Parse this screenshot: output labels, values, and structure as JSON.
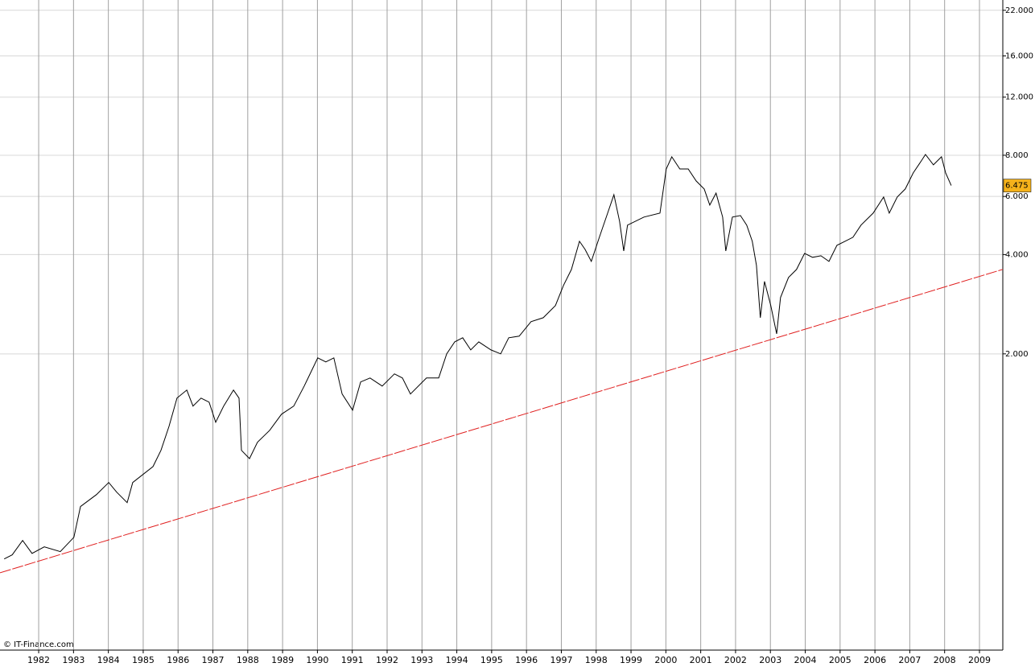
{
  "chart_data": {
    "type": "line",
    "source": "© IT-Finance.com",
    "log_y": true,
    "grid": true,
    "xlim": [
      1980.89,
      2009.67
    ],
    "xticks": [
      1982,
      1983,
      1984,
      1985,
      1986,
      1987,
      1988,
      1989,
      1990,
      1991,
      1992,
      1993,
      1994,
      1995,
      1996,
      1997,
      1998,
      1999,
      2000,
      2001,
      2002,
      2003,
      2004,
      2005,
      2006,
      2007,
      2008,
      2009
    ],
    "ylim": [
      253,
      23640
    ],
    "yticks": [
      {
        "value": 2000,
        "label": "2.000"
      },
      {
        "value": 4000,
        "label": "4.000"
      },
      {
        "value": 6000,
        "label": "6.000"
      },
      {
        "value": 8000,
        "label": "8.000"
      },
      {
        "value": 12000,
        "label": "12.000"
      },
      {
        "value": 16000,
        "label": "16.000"
      },
      {
        "value": 22000,
        "label": "22.000"
      }
    ],
    "current_value": {
      "value": 6475,
      "label": "6.475",
      "color": "#f5b21b"
    },
    "series": [
      {
        "color": "#000000",
        "x": [
          1981.01,
          1981.24,
          1981.54,
          1981.81,
          1982.16,
          1982.62,
          1983.01,
          1983.2,
          1983.66,
          1984.01,
          1984.24,
          1984.54,
          1984.7,
          1985.28,
          1985.51,
          1985.74,
          1985.97,
          1986.25,
          1986.43,
          1986.66,
          1986.89,
          1987.08,
          1987.31,
          1987.59,
          1987.75,
          1987.82,
          1988.05,
          1988.28,
          1988.63,
          1988.97,
          1989.32,
          1989.62,
          1990.01,
          1990.24,
          1990.47,
          1990.71,
          1991.01,
          1991.24,
          1991.51,
          1991.86,
          1992.21,
          1992.44,
          1992.67,
          1993.13,
          1993.48,
          1993.71,
          1993.94,
          1994.17,
          1994.4,
          1994.63,
          1994.98,
          1995.26,
          1995.49,
          1995.79,
          1996.13,
          1996.48,
          1996.83,
          1997.06,
          1997.29,
          1997.52,
          1997.68,
          1997.86,
          1998.09,
          1998.33,
          1998.51,
          1998.67,
          1998.79,
          1998.9,
          1999.37,
          1999.83,
          2000.01,
          2000.17,
          2000.4,
          2000.64,
          2000.87,
          2001.1,
          2001.26,
          2001.44,
          2001.63,
          2001.72,
          2001.91,
          2002.14,
          2002.32,
          2002.48,
          2002.6,
          2002.71,
          2002.83,
          2003.01,
          2003.18,
          2003.29,
          2003.52,
          2003.75,
          2003.98,
          2004.21,
          2004.45,
          2004.68,
          2004.91,
          2005.14,
          2005.37,
          2005.6,
          2005.95,
          2006.25,
          2006.41,
          2006.64,
          2006.87,
          2007.1,
          2007.33,
          2007.45,
          2007.68,
          2007.91,
          2008.03,
          2008.19
        ],
        "values": [
          478,
          492,
          544,
          497,
          520,
          503,
          556,
          689,
          749,
          815,
          762,
          708,
          815,
          911,
          1020,
          1206,
          1469,
          1554,
          1389,
          1469,
          1428,
          1241,
          1389,
          1554,
          1469,
          1020,
          963,
          1079,
          1173,
          1313,
          1389,
          1598,
          1945,
          1891,
          1945,
          1511,
          1350,
          1644,
          1690,
          1598,
          1739,
          1690,
          1511,
          1690,
          1690,
          2000,
          2175,
          2238,
          2056,
          2175,
          2056,
          2000,
          2238,
          2263,
          2504,
          2574,
          2801,
          3223,
          3605,
          4389,
          4149,
          3813,
          4513,
          5341,
          6075,
          5049,
          4102,
          4911,
          5195,
          5341,
          7271,
          7912,
          7271,
          7271,
          6685,
          6320,
          5649,
          6144,
          5195,
          4102,
          5195,
          5252,
          4911,
          4389,
          3709,
          2574,
          3315,
          2801,
          2301,
          2963,
          3408,
          3605,
          4034,
          3923,
          3967,
          3813,
          4266,
          4389,
          4513,
          4911,
          5341,
          5975,
          5341,
          5975,
          6320,
          7071,
          7691,
          8044,
          7479,
          7912,
          7071,
          6475
        ]
      }
    ],
    "trendline": {
      "color": "#e02020",
      "dashed": true,
      "x": [
        1980.89,
        2009.67
      ],
      "values": [
        434,
        3606
      ]
    }
  }
}
